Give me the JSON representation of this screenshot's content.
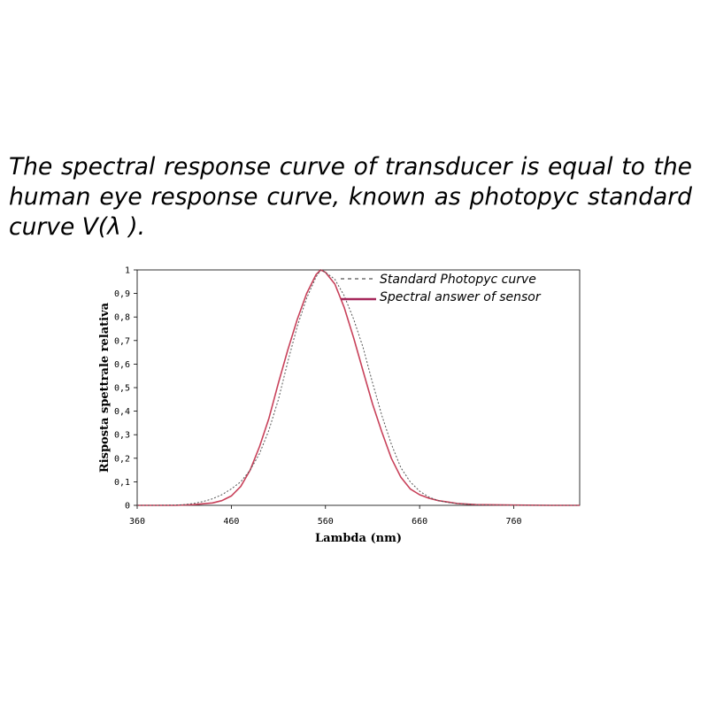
{
  "caption": {
    "line1": "The spectral response curve of transducer is equal to the",
    "line2": "human eye response curve, known as photopyc standard",
    "line3": "curve V(λ )."
  },
  "chart_data": {
    "type": "line",
    "xlabel": "Lambda (nm)",
    "ylabel": "Risposta spettrale relativa",
    "xlim": [
      360,
      830
    ],
    "ylim": [
      0,
      1
    ],
    "xticks": [
      360,
      460,
      560,
      660,
      760
    ],
    "yticks": [
      0,
      0.1,
      0.2,
      0.3,
      0.4,
      0.5,
      0.6,
      0.7,
      0.8,
      0.9,
      1
    ],
    "ytick_labels": [
      "0",
      "0,1",
      "0,2",
      "0,3",
      "0,4",
      "0,5",
      "0,6",
      "0,7",
      "0,8",
      "0,9",
      "1"
    ],
    "xtick_labels": [
      "360",
      "460",
      "560",
      "660",
      "760"
    ],
    "grid": false,
    "legend_position": "top-right",
    "series": [
      {
        "name": "Standard Photopyc curve",
        "color": "#555555",
        "style": "dashed",
        "x": [
          360,
          380,
          400,
          410,
          420,
          430,
          440,
          450,
          460,
          470,
          480,
          490,
          500,
          510,
          520,
          530,
          540,
          550,
          555,
          560,
          570,
          580,
          590,
          600,
          610,
          620,
          630,
          640,
          650,
          660,
          670,
          680,
          690,
          700,
          720,
          740,
          760,
          780,
          800,
          830
        ],
        "y": [
          0,
          0,
          0.001,
          0.003,
          0.008,
          0.016,
          0.028,
          0.045,
          0.07,
          0.1,
          0.15,
          0.22,
          0.32,
          0.45,
          0.61,
          0.76,
          0.88,
          0.97,
          1.0,
          0.99,
          0.96,
          0.89,
          0.79,
          0.67,
          0.52,
          0.38,
          0.26,
          0.16,
          0.1,
          0.06,
          0.035,
          0.02,
          0.012,
          0.007,
          0.003,
          0.001,
          0,
          0,
          0,
          0
        ]
      },
      {
        "name": "Spectral answer of sensor",
        "color": "#c8415a",
        "style": "solid",
        "x": [
          360,
          400,
          420,
          440,
          450,
          460,
          470,
          480,
          490,
          500,
          510,
          520,
          530,
          540,
          550,
          555,
          560,
          570,
          580,
          590,
          600,
          610,
          620,
          630,
          640,
          650,
          660,
          670,
          680,
          700,
          720,
          760,
          800,
          830
        ],
        "y": [
          0,
          0,
          0.003,
          0.01,
          0.02,
          0.04,
          0.08,
          0.15,
          0.25,
          0.37,
          0.52,
          0.66,
          0.79,
          0.9,
          0.98,
          1.0,
          0.99,
          0.94,
          0.84,
          0.71,
          0.57,
          0.43,
          0.31,
          0.2,
          0.12,
          0.07,
          0.045,
          0.03,
          0.02,
          0.008,
          0.003,
          0.001,
          0,
          0
        ]
      }
    ]
  }
}
